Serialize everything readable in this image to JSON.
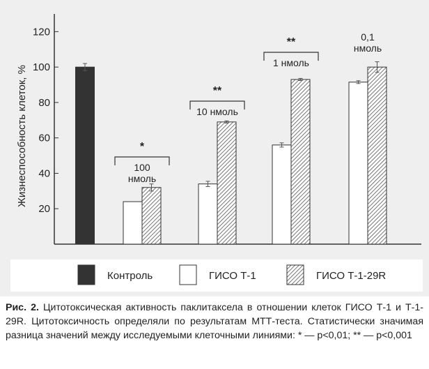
{
  "colors": {
    "panel_bg": "#efefef",
    "control_bar": "#333333",
    "outline": "#333333"
  },
  "chart_data": {
    "type": "bar",
    "ylabel": "Жизнеспособность клеток, %",
    "ylim": [
      0,
      130
    ],
    "yticks": [
      20,
      40,
      60,
      80,
      100,
      120
    ],
    "grid": false,
    "legend_position": "bottom",
    "groups": [
      {
        "label": "",
        "bars": [
          {
            "series": "control",
            "value": 100,
            "err": 2
          }
        ]
      },
      {
        "label": "100 нмоль",
        "label_lines": [
          "100",
          "нмоль"
        ],
        "significance": "*",
        "bars": [
          {
            "series": "giso",
            "value": 24,
            "err": 0
          },
          {
            "series": "giso29r",
            "value": 32,
            "err": 2
          }
        ]
      },
      {
        "label": "10 нмоль",
        "label_lines": [
          "10 нмоль"
        ],
        "significance": "**",
        "bars": [
          {
            "series": "giso",
            "value": 34,
            "err": 1.5
          },
          {
            "series": "giso29r",
            "value": 69,
            "err": 0.6
          }
        ]
      },
      {
        "label": "1 нмоль",
        "label_lines": [
          "1 нмоль"
        ],
        "significance": "**",
        "bars": [
          {
            "series": "giso",
            "value": 56,
            "err": 1.2
          },
          {
            "series": "giso29r",
            "value": 93,
            "err": 0.6
          }
        ]
      },
      {
        "label": "0,1 нмоль",
        "label_lines": [
          "0,1",
          "нмоль"
        ],
        "significance": "",
        "bars": [
          {
            "series": "giso",
            "value": 91.5,
            "err": 0.8
          },
          {
            "series": "giso29r",
            "value": 100,
            "err": 3
          }
        ]
      }
    ],
    "series": [
      {
        "key": "control",
        "name": "Контроль",
        "fill": "solid"
      },
      {
        "key": "giso",
        "name": "ГИСО Т-1",
        "fill": "white"
      },
      {
        "key": "giso29r",
        "name": "ГИСО Т-1-29R",
        "fill": "hatched"
      }
    ]
  },
  "caption": {
    "prefix": "Рис. 2.",
    "text": " Цитотоксическая активность паклитаксела в отношении клеток ГИСО Т-1 и Т-1-29R. Цитотоксичность определяли по результатам МТТ-теста. Статистически значимая разница значений между исследуемыми клеточными линиями: * — p<0,01; ** — p<0,001"
  }
}
